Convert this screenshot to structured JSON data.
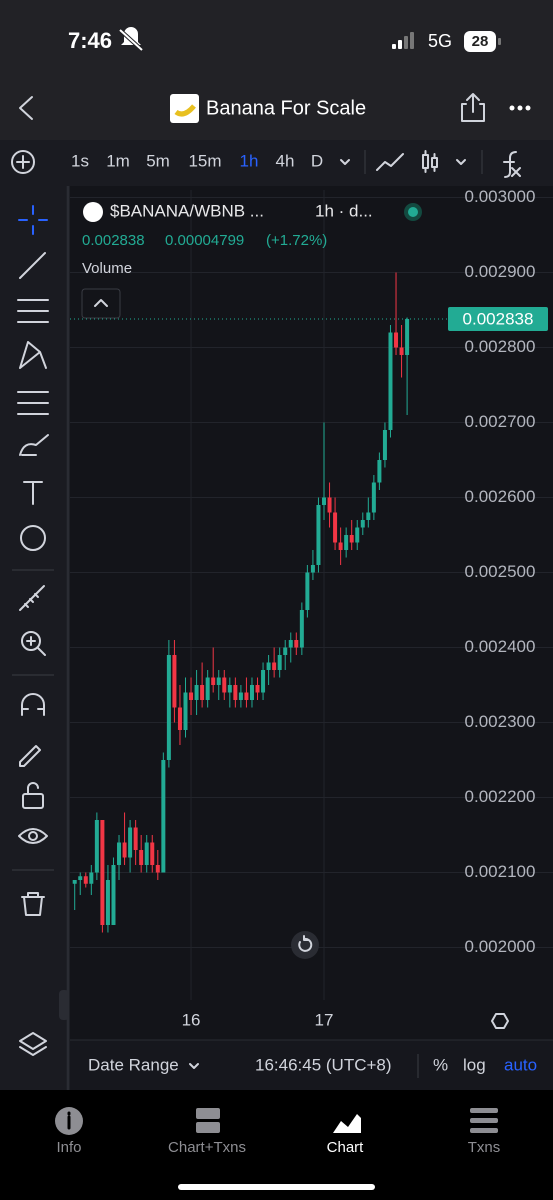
{
  "status_bar": {
    "time": "7:46",
    "network": "5G",
    "battery": "28"
  },
  "header": {
    "title": "Banana For Scale"
  },
  "toolbar": {
    "intervals": [
      "1s",
      "1m",
      "5m",
      "15m",
      "1h",
      "4h",
      "D"
    ],
    "active_interval": 4
  },
  "legend": {
    "symbol": "$BANANA/WBNB ...",
    "meta": "1h · d...",
    "last": "0.002838",
    "change": "0.00004799",
    "change_pct": "(+1.72%)",
    "volume_label": "Volume"
  },
  "chart_data": {
    "type": "candlestick",
    "categories": [
      null,
      null,
      null,
      null,
      null,
      null,
      null,
      null,
      null,
      null,
      null,
      null,
      null,
      null,
      null,
      null,
      null,
      null,
      null,
      null,
      null,
      "16",
      null,
      null,
      null,
      null,
      null,
      null,
      null,
      null,
      null,
      null,
      null,
      null,
      null,
      null,
      null,
      null,
      null,
      null,
      null,
      null,
      null,
      null,
      null,
      "17",
      null,
      null,
      null,
      null,
      null,
      null,
      null,
      null,
      null,
      null,
      null,
      null,
      null,
      null,
      null
    ],
    "open": [
      0.002085,
      0.00209,
      0.002095,
      0.002085,
      0.0021,
      0.00217,
      0.00203,
      0.00203,
      0.00211,
      0.00214,
      0.00212,
      0.00216,
      0.00213,
      0.00211,
      0.00214,
      0.00211,
      0.0021,
      0.00225,
      0.00239,
      0.00232,
      0.00229,
      0.00234,
      0.00233,
      0.00235,
      0.00233,
      0.00236,
      0.00235,
      0.00236,
      0.00234,
      0.00235,
      0.00233,
      0.00234,
      0.00233,
      0.00235,
      0.00234,
      0.00237,
      0.00238,
      0.00237,
      0.00239,
      0.0024,
      0.00241,
      0.0024,
      0.00245,
      0.0025,
      0.00251,
      0.00259,
      0.0026,
      0.00258,
      0.00254,
      0.00253,
      0.00255,
      0.00254,
      0.00256,
      0.00257,
      0.00258,
      0.00262,
      0.00265,
      0.00269,
      0.00282,
      0.0028,
      0.00279
    ],
    "high": [
      0.00209,
      0.0021,
      0.0021,
      0.00211,
      0.00218,
      0.00217,
      0.00211,
      0.00212,
      0.00215,
      0.00218,
      0.00217,
      0.00217,
      0.00215,
      0.00215,
      0.00215,
      0.00213,
      0.00226,
      0.00241,
      0.00241,
      0.00235,
      0.00236,
      0.00236,
      0.00237,
      0.00238,
      0.00237,
      0.0024,
      0.00237,
      0.00237,
      0.00236,
      0.00236,
      0.00235,
      0.00236,
      0.00236,
      0.00236,
      0.00238,
      0.00239,
      0.0024,
      0.0024,
      0.00241,
      0.00242,
      0.00242,
      0.00246,
      0.00251,
      0.00253,
      0.0026,
      0.0027,
      0.00262,
      0.0026,
      0.00256,
      0.00256,
      0.00257,
      0.00257,
      0.00258,
      0.0026,
      0.00263,
      0.00266,
      0.0027,
      0.00283,
      0.0029,
      0.00283,
      0.00284
    ],
    "low": [
      0.00205,
      0.00207,
      0.00208,
      0.00207,
      0.00209,
      0.00202,
      0.00202,
      0.00203,
      0.00209,
      0.00211,
      0.0021,
      0.00211,
      0.0021,
      0.0021,
      0.0021,
      0.00209,
      0.0021,
      0.00224,
      0.0023,
      0.00227,
      0.00228,
      0.00231,
      0.00231,
      0.00232,
      0.00232,
      0.00234,
      0.00233,
      0.00233,
      0.00232,
      0.00232,
      0.00232,
      0.00232,
      0.00232,
      0.00233,
      0.00233,
      0.00235,
      0.00236,
      0.00236,
      0.00237,
      0.00238,
      0.00239,
      0.00239,
      0.00244,
      0.00249,
      0.0025,
      0.00257,
      0.00256,
      0.00253,
      0.00251,
      0.00252,
      0.00253,
      0.00253,
      0.00255,
      0.00256,
      0.00257,
      0.00261,
      0.00264,
      0.00268,
      0.00279,
      0.00276,
      0.00271
    ],
    "close": [
      0.00209,
      0.002095,
      0.002085,
      0.0021,
      0.00217,
      0.00203,
      0.00209,
      0.00211,
      0.00214,
      0.00212,
      0.00216,
      0.00213,
      0.00211,
      0.00214,
      0.00211,
      0.0021,
      0.00225,
      0.00239,
      0.00232,
      0.00229,
      0.00234,
      0.00233,
      0.00235,
      0.00233,
      0.00236,
      0.00235,
      0.00236,
      0.00234,
      0.00235,
      0.00233,
      0.00234,
      0.00233,
      0.00235,
      0.00234,
      0.00237,
      0.00238,
      0.00237,
      0.00239,
      0.0024,
      0.00241,
      0.0024,
      0.00245,
      0.0025,
      0.00251,
      0.00259,
      0.0026,
      0.00258,
      0.00254,
      0.00253,
      0.00255,
      0.00254,
      0.00256,
      0.00257,
      0.00258,
      0.00262,
      0.00265,
      0.00269,
      0.00282,
      0.0028,
      0.00279,
      0.002838
    ],
    "up_color": "#22ab94",
    "down_color": "#f23645",
    "ylim": [
      0.00193,
      0.00301
    ],
    "yticks": [
      {
        "value": 0.003,
        "label": "0.003000"
      },
      {
        "value": 0.0029,
        "label": "0.002900"
      },
      {
        "value": 0.0028,
        "label": "0.002800"
      },
      {
        "value": 0.0027,
        "label": "0.002700"
      },
      {
        "value": 0.0026,
        "label": "0.002600"
      },
      {
        "value": 0.0025,
        "label": "0.002500"
      },
      {
        "value": 0.0024,
        "label": "0.002400"
      },
      {
        "value": 0.0023,
        "label": "0.002300"
      },
      {
        "value": 0.0022,
        "label": "0.002200"
      },
      {
        "value": 0.0021,
        "label": "0.002100"
      },
      {
        "value": 0.002,
        "label": "0.002000"
      }
    ],
    "last_price": 0.002838,
    "grid": true
  },
  "footer": {
    "date_range": "Date Range",
    "time": "16:46:45 (UTC+8)",
    "percent": "%",
    "log": "log",
    "auto": "auto"
  },
  "tabs": [
    "Info",
    "Chart+Txns",
    "Chart",
    "Txns"
  ],
  "active_tab": 2
}
